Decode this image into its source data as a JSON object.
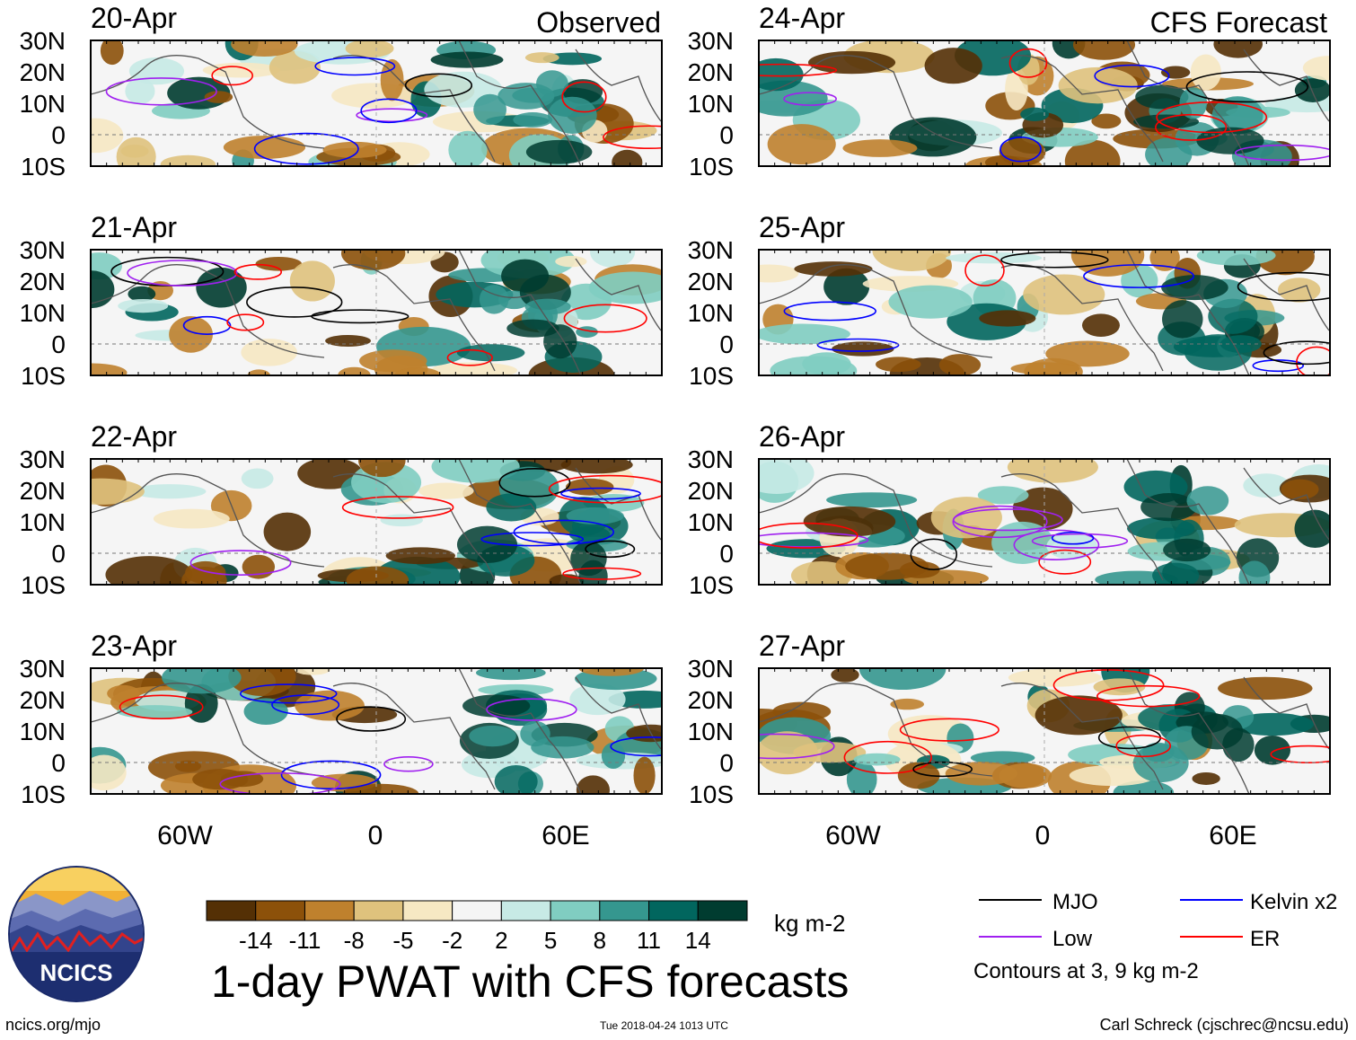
{
  "title": "1-day PWAT with CFS forecasts",
  "observed_label": "Observed",
  "forecast_label": "CFS Forecast",
  "panels": [
    {
      "date": "20-Apr"
    },
    {
      "date": "21-Apr"
    },
    {
      "date": "22-Apr"
    },
    {
      "date": "23-Apr"
    },
    {
      "date": "24-Apr"
    },
    {
      "date": "25-Apr"
    },
    {
      "date": "26-Apr"
    },
    {
      "date": "27-Apr"
    }
  ],
  "lat_labels": [
    "30N",
    "20N",
    "10N",
    "0",
    "10S"
  ],
  "lon_labels": [
    "60W",
    "0",
    "60E"
  ],
  "colorbar": {
    "ticks": [
      "-14",
      "-11",
      "-8",
      "-5",
      "-2",
      "2",
      "5",
      "8",
      "11",
      "14"
    ],
    "units": "kg m-2",
    "colors": [
      "#543005",
      "#8c510a",
      "#bf812d",
      "#dfc27d",
      "#f6e8c3",
      "#f5f5f5",
      "#c7eae5",
      "#80cdc1",
      "#35978f",
      "#01665e",
      "#003c30"
    ]
  },
  "legend": {
    "items": [
      {
        "label": "MJO",
        "color": "#000000"
      },
      {
        "label": "Kelvin x2",
        "color": "#0000ff"
      },
      {
        "label": "Low",
        "color": "#a020f0"
      },
      {
        "label": "ER",
        "color": "#ff0000"
      }
    ],
    "note": "Contours at 3, 9 kg m-2"
  },
  "logo_text": "NCICS",
  "footer": {
    "url": "ncics.org/mjo",
    "timestamp": "Tue 2018-04-24 1013 UTC",
    "credit": "Carl Schreck (cjschrec@ncsu.edu)"
  },
  "chart_data": {
    "type": "heatmap",
    "variable": "1-day precipitable water anomaly",
    "units": "kg m-2",
    "levels": [
      -14,
      -11,
      -8,
      -5,
      -2,
      2,
      5,
      8,
      11,
      14
    ],
    "lat_range": [
      -10,
      30
    ],
    "lon_range": [
      -90,
      90
    ],
    "contour_levels": [
      3,
      9
    ],
    "contour_types": [
      "MJO",
      "Kelvin x2",
      "Low",
      "ER"
    ],
    "observed_dates": [
      "20-Apr",
      "21-Apr",
      "22-Apr",
      "23-Apr"
    ],
    "forecast_dates": [
      "24-Apr",
      "25-Apr",
      "26-Apr",
      "27-Apr"
    ]
  }
}
